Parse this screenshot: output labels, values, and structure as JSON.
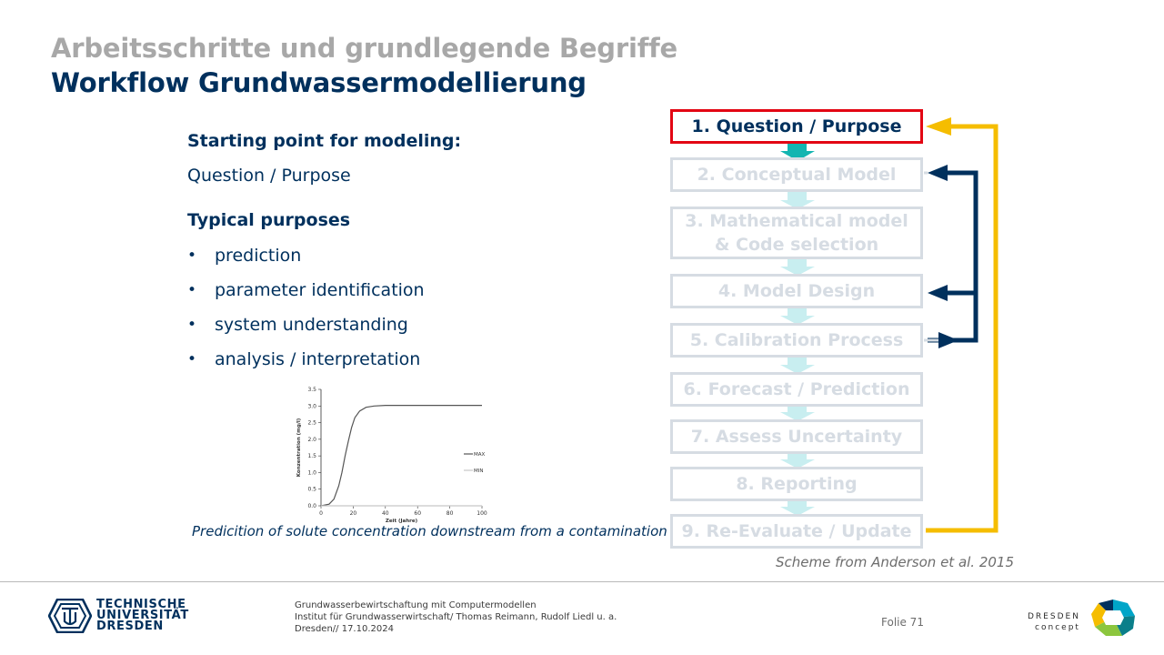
{
  "slide": {
    "title_gray": "Arbeitsschritte und grundlegende Begriffe",
    "title_blue": "Workflow Grundwassermodellierung"
  },
  "left": {
    "heading1": "Starting point for modeling:",
    "text1": "Question / Purpose",
    "heading2": "Typical purposes",
    "bullets": [
      "prediction",
      "parameter identification",
      "system understanding",
      "analysis / interpretation"
    ],
    "caption": "Predicition of solute concentration downstream from a contamination"
  },
  "chart_data": {
    "type": "line",
    "xlabel": "Zeit (Jahre)",
    "ylabel": "Konzentration (mg/l)",
    "xlim": [
      0,
      100
    ],
    "ylim": [
      0,
      3.5
    ],
    "x_ticks": [
      "0",
      "20",
      "40",
      "60",
      "80",
      "100"
    ],
    "y_ticks": [
      "0.0",
      "0.5",
      "1.0",
      "1.5",
      "2.0",
      "2.5",
      "3.0",
      "3.5"
    ],
    "legend_position": "right",
    "series": [
      {
        "name": "MAX",
        "color": "#555555",
        "points": [
          [
            0,
            0
          ],
          [
            5,
            0.05
          ],
          [
            8,
            0.2
          ],
          [
            11,
            0.6
          ],
          [
            13,
            1.0
          ],
          [
            15,
            1.5
          ],
          [
            17,
            1.95
          ],
          [
            19,
            2.35
          ],
          [
            21,
            2.65
          ],
          [
            24,
            2.85
          ],
          [
            28,
            2.96
          ],
          [
            33,
            3.0
          ],
          [
            40,
            3.02
          ],
          [
            60,
            3.02
          ],
          [
            80,
            3.02
          ],
          [
            100,
            3.02
          ]
        ]
      },
      {
        "name": "MIN",
        "color": "#c8c8c8",
        "points": [
          [
            0,
            0
          ],
          [
            100,
            0
          ]
        ]
      }
    ]
  },
  "workflow": {
    "steps": [
      {
        "label": "1. Question  / Purpose",
        "active": true
      },
      {
        "label": "2. Conceptual Model",
        "active": false
      },
      {
        "label": "3. Mathematical model & Code selection",
        "active": false
      },
      {
        "label": "4. Model Design",
        "active": false
      },
      {
        "label": "5. Calibration Process",
        "active": false
      },
      {
        "label": "6. Forecast / Prediction",
        "active": false
      },
      {
        "label": "7. Assess  Uncertainty",
        "active": false
      },
      {
        "label": "8. Reporting",
        "active": false
      },
      {
        "label": "9. Re-Evaluate / Update",
        "active": false
      }
    ],
    "source": "Scheme from Anderson et al. 2015",
    "colors": {
      "active_border": "#e30613",
      "inactive": "#d6dce3",
      "connector": "#c8eef0",
      "connector_active": "#13b5b1",
      "feedback_navy": "#00305d",
      "feedback_yellow": "#f5bd00"
    }
  },
  "footer": {
    "info_line1": "Grundwasserbewirtschaftung mit Computermodellen",
    "info_line2": "Institut für Grundwasserwirtschaft/ Thomas Reimann, Rudolf Liedl u. a.",
    "info_line3": "Dresden// 17.10.2024",
    "page": "Folie 71",
    "tu_line1": "TECHNISCHE",
    "tu_line2": "UNIVERSITÄT",
    "tu_line3": "DRESDEN",
    "dc_line1": "DRESDEN",
    "dc_line2": "concept"
  }
}
